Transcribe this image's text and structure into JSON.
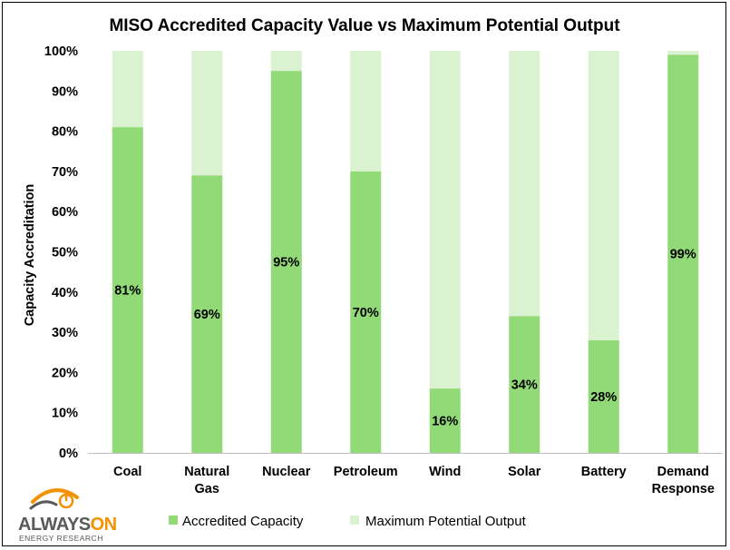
{
  "colors": {
    "accredited": "#92d977",
    "max_potential": "#daf2d0",
    "axis": "#bfbfbf",
    "grid": "#d9d9d9",
    "logo_gray": "#595959",
    "logo_orange": "#f39200"
  },
  "legend": {
    "accredited": "Accredited Capacity",
    "max_potential": "Maximum Potential Output"
  },
  "logo": {
    "brand_a": "ALWAYS",
    "brand_b": "ON",
    "tagline": "ENERGY RESEARCH",
    "icon": "power-symbol-swoosh-icon"
  },
  "chart_data": {
    "type": "bar",
    "stacked": true,
    "title": "MISO Accredited Capacity Value vs Maximum Potential Output",
    "xlabel": "",
    "ylabel": "Capacity Accreditation",
    "ylim": [
      0,
      100
    ],
    "yticks": [
      "0%",
      "10%",
      "20%",
      "30%",
      "40%",
      "50%",
      "60%",
      "70%",
      "80%",
      "90%",
      "100%"
    ],
    "categories": [
      [
        "Coal"
      ],
      [
        "Natural",
        "Gas"
      ],
      [
        "Nuclear"
      ],
      [
        "Petroleum"
      ],
      [
        "Wind"
      ],
      [
        "Solar"
      ],
      [
        "Battery"
      ],
      [
        "Demand",
        "Response"
      ]
    ],
    "series": [
      {
        "name": "Accredited Capacity",
        "values": [
          81,
          69,
          95,
          70,
          16,
          34,
          28,
          99
        ],
        "data_labels": [
          "81%",
          "69%",
          "95%",
          "70%",
          "16%",
          "34%",
          "28%",
          "99%"
        ]
      },
      {
        "name": "Maximum Potential Output",
        "values": [
          19,
          31,
          5,
          30,
          84,
          66,
          72,
          1
        ]
      }
    ],
    "grid": false,
    "legend_position": "bottom"
  }
}
